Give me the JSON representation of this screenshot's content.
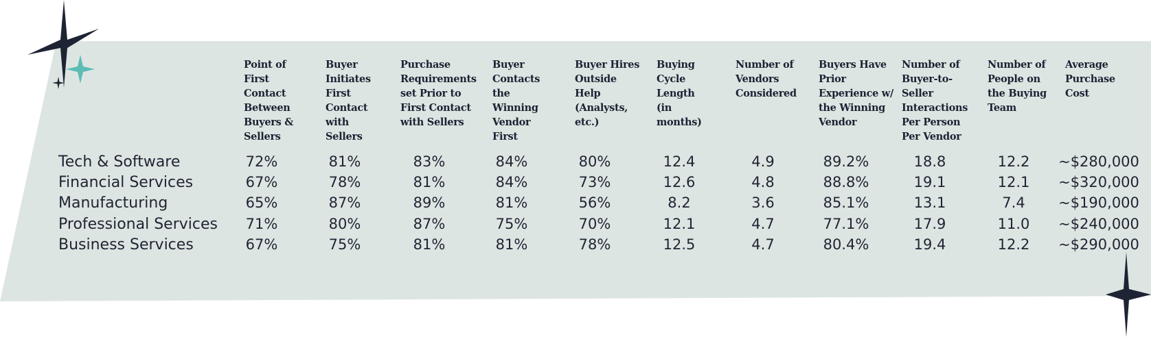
{
  "colors": {
    "panel": "#dde5e2",
    "star_dark": "#1e2433",
    "star_teal": "#5bbdb6",
    "text": "#1f2433"
  },
  "icons": [
    "large-dark-sparkle-icon",
    "teal-sparkle-icon",
    "small-dark-sparkle-icon",
    "bottom-right-sparkle-icon"
  ],
  "table": {
    "headers": [
      "Point of First Contact Between Buyers & Sellers",
      "Buyer Initiates First Contact with Sellers",
      "Purchase Requirements set Prior to First Contact with Sellers",
      "Buyer Contacts the Winning Vendor First",
      "Buyer Hires Outside Help (Analysts, etc.)",
      "Buying Cycle Length (in months)",
      "Number of Vendors Considered",
      "Buyers Have Prior Experience w/ the Winning Vendor",
      "Number of Buyer-to-Seller Interactions Per Person Per Vendor",
      "Number of People on the Buying Team",
      "Average Purchase Cost"
    ],
    "rows": [
      {
        "label": "Tech & Software",
        "cells": [
          "72%",
          "81%",
          "83%",
          "84%",
          "80%",
          "12.4",
          "4.9",
          "89.2%",
          "18.8",
          "12.2",
          "~$280,000"
        ]
      },
      {
        "label": "Financial Services",
        "cells": [
          "67%",
          "78%",
          "81%",
          "84%",
          "73%",
          "12.6",
          "4.8",
          "88.8%",
          "19.1",
          "12.1",
          "~$320,000"
        ]
      },
      {
        "label": "Manufacturing",
        "cells": [
          "65%",
          "87%",
          "89%",
          "81%",
          "56%",
          "8.2",
          "3.6",
          "85.1%",
          "13.1",
          "7.4",
          "~$190,000"
        ]
      },
      {
        "label": "Professional Services",
        "cells": [
          "71%",
          "80%",
          "87%",
          "75%",
          "70%",
          "12.1",
          "4.7",
          "77.1%",
          "17.9",
          "11.0",
          "~$240,000"
        ]
      },
      {
        "label": "Business Services",
        "cells": [
          "67%",
          "75%",
          "81%",
          "81%",
          "78%",
          "12.5",
          "4.7",
          "80.4%",
          "19.4",
          "12.2",
          "~$290,000"
        ]
      }
    ]
  }
}
